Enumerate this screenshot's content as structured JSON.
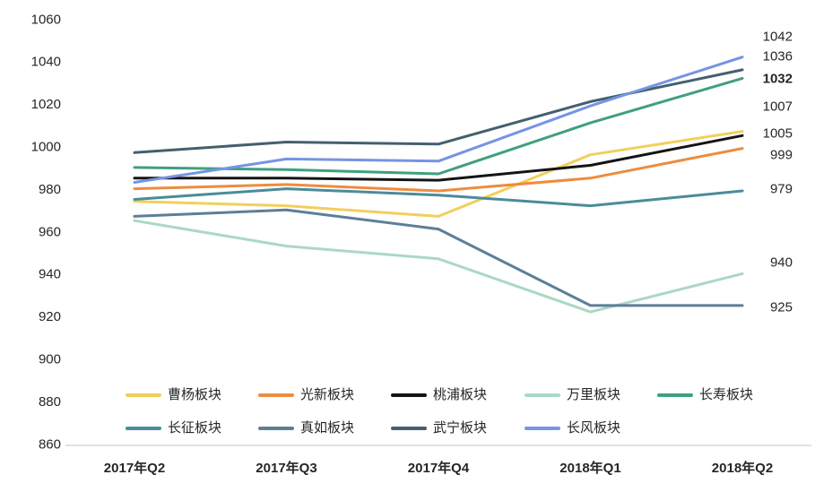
{
  "chart_data": {
    "type": "line",
    "title": "",
    "xlabel": "",
    "ylabel": "",
    "categories": [
      "2017年Q2",
      "2017年Q3",
      "2017年Q4",
      "2018年Q1",
      "2018年Q2"
    ],
    "series": [
      {
        "name": "曹杨板块",
        "color": "#F2CF5B",
        "values": [
          974,
          972,
          967,
          996,
          1007
        ],
        "end_label": "1007",
        "end_label_bold": false
      },
      {
        "name": "光新板块",
        "color": "#ED8C3E",
        "values": [
          980,
          982,
          979,
          985,
          999
        ],
        "end_label": "999",
        "end_label_bold": false
      },
      {
        "name": "桃浦板块",
        "color": "#141414",
        "values": [
          985,
          985,
          984,
          991,
          1005
        ],
        "end_label": "1005",
        "end_label_bold": false
      },
      {
        "name": "万里板块",
        "color": "#ABD8C4",
        "values": [
          965,
          953,
          947,
          922,
          940
        ],
        "end_label": "940",
        "end_label_bold": false
      },
      {
        "name": "长寿板块",
        "color": "#3FA07E",
        "values": [
          990,
          989,
          987,
          1011,
          1032
        ],
        "end_label": "1032",
        "end_label_bold": true
      },
      {
        "name": "长征板块",
        "color": "#4A8C9B",
        "values": [
          975,
          980,
          977,
          972,
          979
        ],
        "end_label": "979",
        "end_label_bold": false
      },
      {
        "name": "真如板块",
        "color": "#5C7F98",
        "values": [
          967,
          970,
          961,
          925,
          925
        ],
        "end_label": "925",
        "end_label_bold": false
      },
      {
        "name": "武宁板块",
        "color": "#44606F",
        "values": [
          997,
          1002,
          1001,
          1021,
          1036
        ],
        "end_label": "1036",
        "end_label_bold": false
      },
      {
        "name": "长风板块",
        "color": "#7594E4",
        "values": [
          983,
          994,
          993,
          1019,
          1042
        ],
        "end_label": "1042",
        "end_label_bold": false
      }
    ],
    "ylim": [
      860,
      1060
    ],
    "y_ticks": [
      1060,
      1040,
      1020,
      1000,
      980,
      960,
      940,
      920,
      900,
      880,
      860
    ],
    "grid": false,
    "legend_position": "bottom-inside",
    "legend_rows": [
      [
        "曹杨板块",
        "光新板块",
        "桃浦板块",
        "万里板块",
        "长寿板块"
      ],
      [
        "长征板块",
        "真如板块",
        "武宁板块",
        "长风板块"
      ]
    ],
    "axis_color": "#D9D9D9",
    "text_color": "#262626"
  }
}
